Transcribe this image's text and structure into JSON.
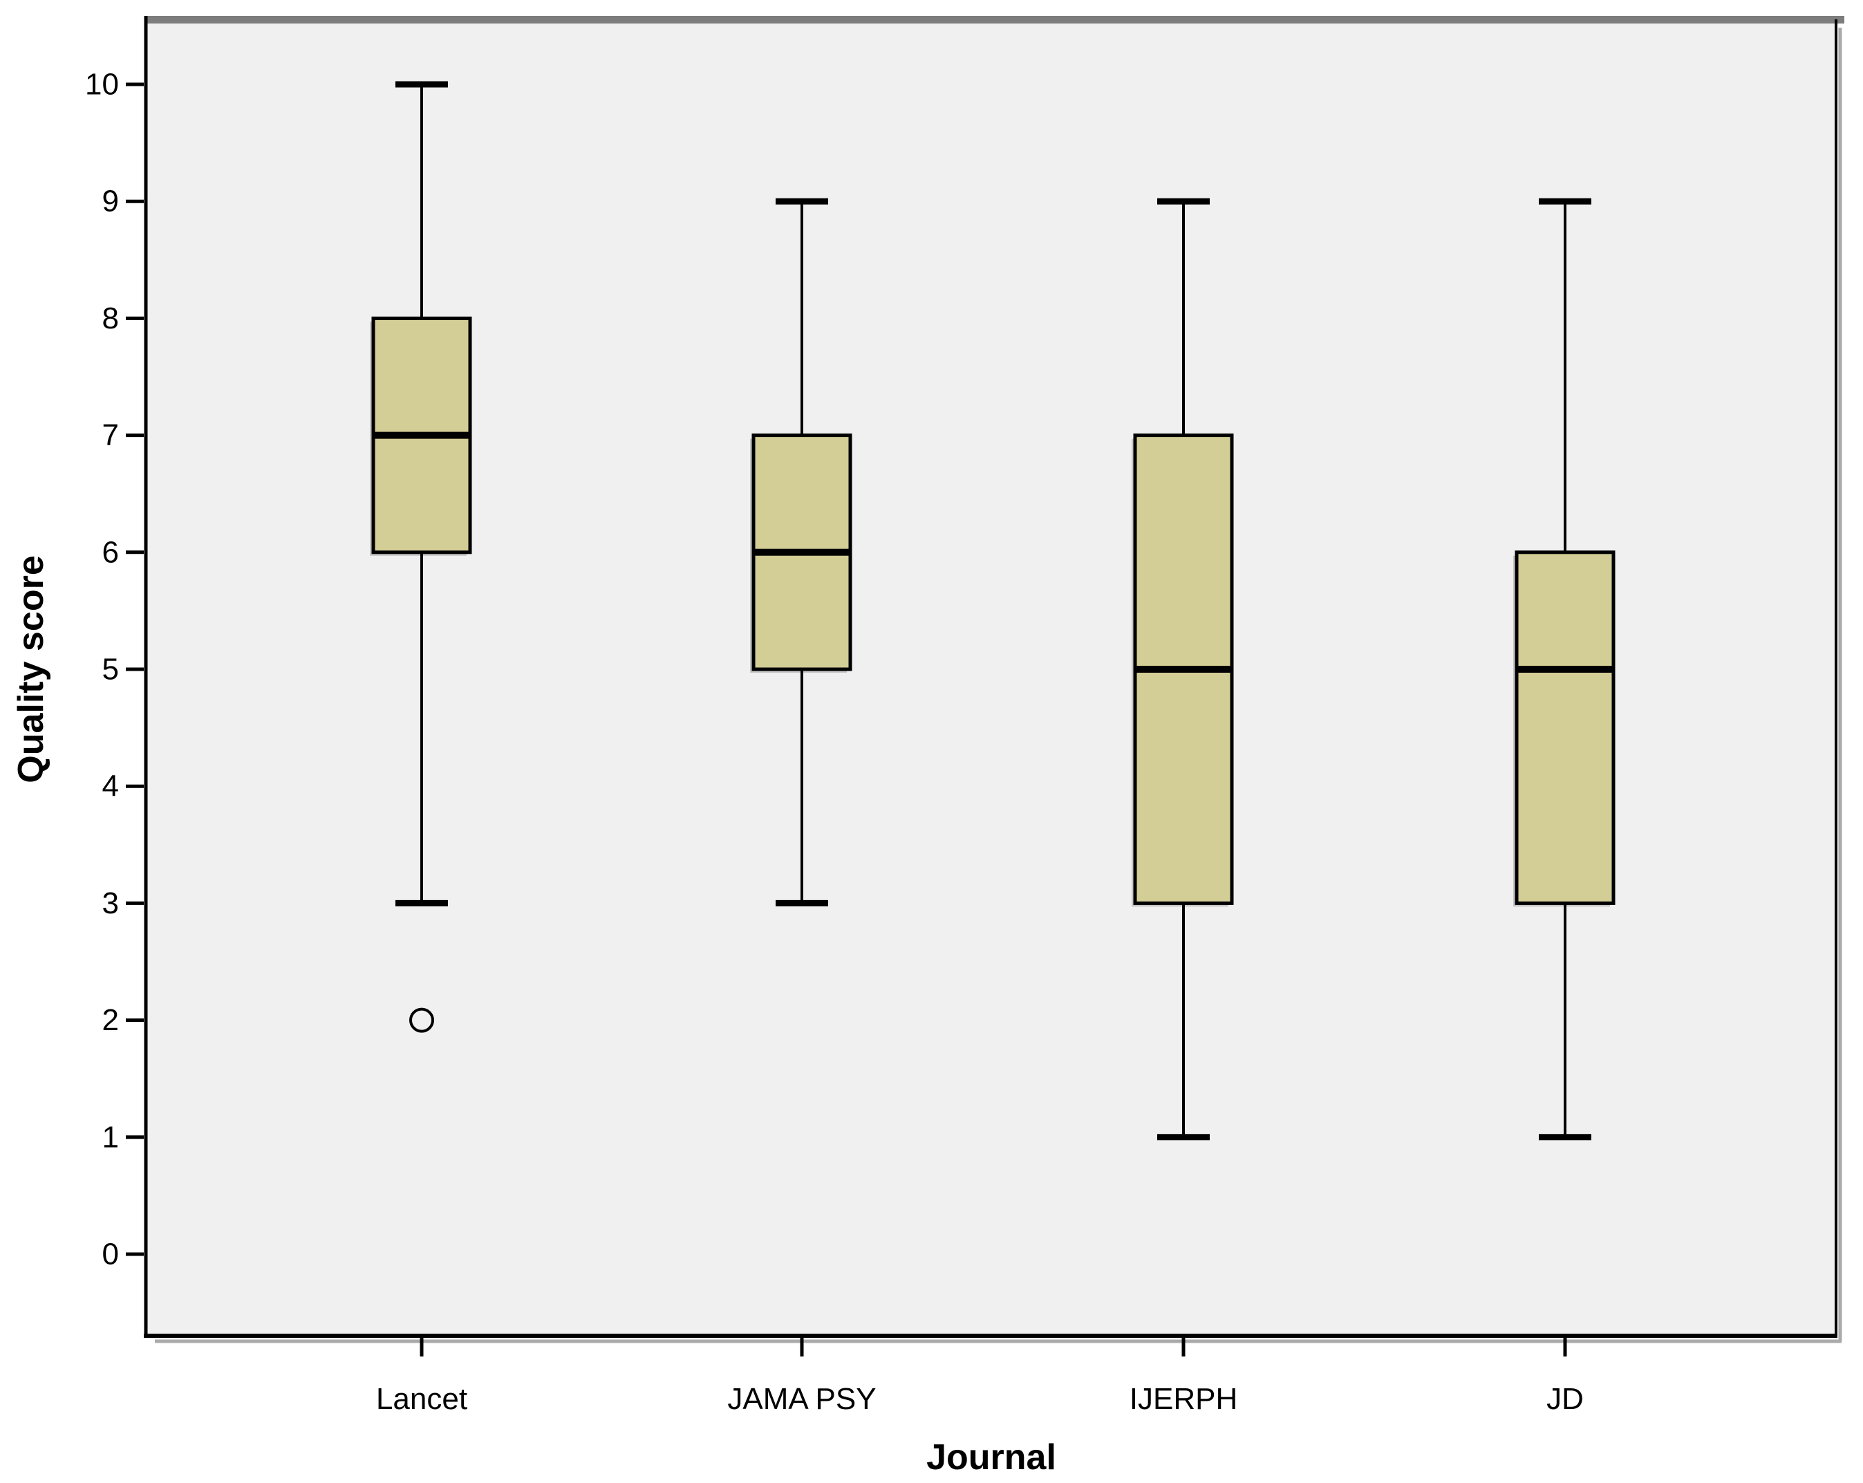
{
  "figure": {
    "page_background": "#ffffff",
    "plot_background": "#f0f0f0",
    "frame_top_color": "#7d7d7d",
    "axis_color": "#000000",
    "box_fill": "#d3cd96",
    "box_stroke": "#000000",
    "shadow_color": "#aaaaaa"
  },
  "chart_data": {
    "type": "boxplot",
    "title": "",
    "xlabel": "Journal",
    "ylabel": "Quality score",
    "categories": [
      "Lancet",
      "JAMA PSY",
      "IJERPH",
      "JD"
    ],
    "series": [
      {
        "name": "Lancet",
        "whisker_low": 3,
        "q1": 6,
        "median": 7,
        "q3": 8,
        "whisker_high": 10,
        "outliers": [
          2
        ]
      },
      {
        "name": "JAMA PSY",
        "whisker_low": 3,
        "q1": 5,
        "median": 6,
        "q3": 7,
        "whisker_high": 9,
        "outliers": []
      },
      {
        "name": "IJERPH",
        "whisker_low": 1,
        "q1": 3,
        "median": 5,
        "q3": 7,
        "whisker_high": 9,
        "outliers": []
      },
      {
        "name": "JD",
        "whisker_low": 1,
        "q1": 3,
        "median": 5,
        "q3": 6,
        "whisker_high": 9,
        "outliers": []
      }
    ],
    "y_ticks": [
      "0",
      "1",
      "2",
      "3",
      "4",
      "5",
      "6",
      "7",
      "8",
      "9",
      "10"
    ],
    "ylim": [
      0,
      10
    ],
    "grid": false,
    "legend": false
  }
}
